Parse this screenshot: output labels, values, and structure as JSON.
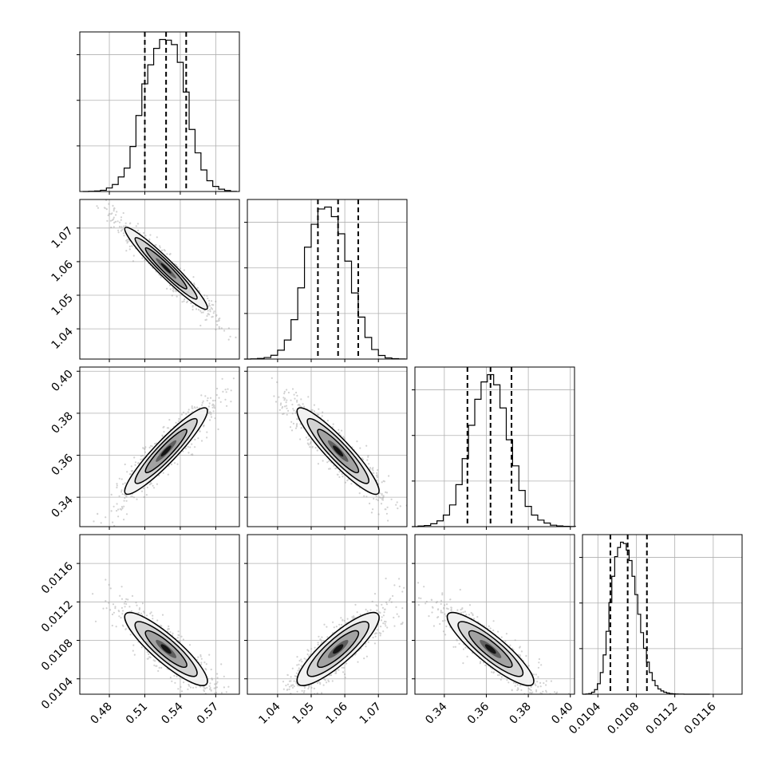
{
  "chart_data": {
    "type": "corner",
    "parameters": [
      {
        "index": 0,
        "range": [
          0.455,
          0.59
        ],
        "ticks": [
          0.48,
          0.51,
          0.54,
          0.57
        ],
        "tick_labels": [
          "0.48",
          "0.51",
          "0.54",
          "0.57"
        ],
        "quantiles": [
          0.51,
          0.528,
          0.545
        ],
        "bins": [
          0.46,
          0.465,
          0.47,
          0.475,
          0.48,
          0.485,
          0.49,
          0.495,
          0.5,
          0.505,
          0.51,
          0.515,
          0.52,
          0.525,
          0.53,
          0.535,
          0.54,
          0.545,
          0.55,
          0.555,
          0.56,
          0.565,
          0.57,
          0.575,
          0.58,
          0.585
        ],
        "counts": [
          0,
          2,
          4,
          10,
          28,
          55,
          115,
          185,
          355,
          600,
          850,
          1000,
          1130,
          1200,
          1195,
          1160,
          1020,
          785,
          490,
          305,
          170,
          85,
          40,
          18,
          8,
          1
        ]
      },
      {
        "index": 1,
        "range": [
          1.031,
          1.0785
        ],
        "ticks": [
          1.04,
          1.05,
          1.06,
          1.07
        ],
        "tick_labels": [
          "1.04",
          "1.05",
          "1.06",
          "1.07"
        ],
        "quantiles": [
          1.052,
          1.058,
          1.064
        ],
        "bins": [
          1.031,
          1.033,
          1.035,
          1.037,
          1.039,
          1.041,
          1.043,
          1.045,
          1.047,
          1.049,
          1.051,
          1.053,
          1.055,
          1.057,
          1.059,
          1.061,
          1.063,
          1.065,
          1.067,
          1.069,
          1.071,
          1.073,
          1.075,
          1.077
        ],
        "counts": [
          0,
          2,
          5,
          12,
          30,
          70,
          150,
          310,
          560,
          880,
          1060,
          1180,
          1195,
          1120,
          985,
          770,
          520,
          330,
          170,
          75,
          28,
          9,
          3,
          1
        ]
      },
      {
        "index": 2,
        "range": [
          0.326,
          0.402
        ],
        "ticks": [
          0.34,
          0.36,
          0.38,
          0.4
        ],
        "tick_labels": [
          "0.34",
          "0.36",
          "0.38",
          "0.40"
        ],
        "quantiles": [
          0.351,
          0.362,
          0.372
        ],
        "bins": [
          0.326,
          0.329,
          0.332,
          0.335,
          0.338,
          0.341,
          0.344,
          0.347,
          0.35,
          0.353,
          0.356,
          0.359,
          0.362,
          0.365,
          0.368,
          0.371,
          0.374,
          0.377,
          0.38,
          0.383,
          0.386,
          0.389,
          0.392,
          0.395,
          0.398,
          0.401
        ],
        "counts": [
          0,
          4,
          8,
          20,
          40,
          80,
          150,
          290,
          470,
          700,
          880,
          1000,
          1050,
          980,
          820,
          600,
          420,
          250,
          140,
          80,
          45,
          25,
          10,
          5,
          2,
          1
        ]
      },
      {
        "index": 3,
        "range": [
          0.01024,
          0.0119
        ],
        "ticks": [
          0.0104,
          0.0108,
          0.0112,
          0.0116
        ],
        "tick_labels": [
          "0.0104",
          "0.0108",
          "0.0112",
          "0.0116"
        ],
        "quantiles": [
          0.01053,
          0.01071,
          0.01091
        ],
        "bins": [
          0.01026,
          0.01029,
          0.01032,
          0.01035,
          0.01038,
          0.01041,
          0.01044,
          0.01047,
          0.0105,
          0.01053,
          0.01056,
          0.01059,
          0.01062,
          0.01065,
          0.01068,
          0.01071,
          0.01074,
          0.01077,
          0.0108,
          0.01083,
          0.01086,
          0.01089,
          0.01092,
          0.01095,
          0.01098,
          0.01101,
          0.01104,
          0.01107,
          0.0111,
          0.01113,
          0.01116,
          0.01119,
          0.01122,
          0.01125,
          0.01128,
          0.01131,
          0.01134,
          0.01137,
          0.0114,
          0.01143,
          0.01146,
          0.01149,
          0.01152,
          0.01155
        ],
        "counts": [
          0,
          2,
          5,
          15,
          35,
          80,
          165,
          300,
          480,
          700,
          900,
          1050,
          1120,
          1160,
          1150,
          1100,
          1020,
          900,
          760,
          610,
          470,
          350,
          245,
          165,
          105,
          65,
          40,
          25,
          15,
          9,
          5,
          3,
          2,
          1,
          1,
          0,
          0,
          0,
          0,
          0,
          0,
          0,
          0,
          0
        ]
      }
    ],
    "hist_y_ticks": [
      0.3,
      0.6,
      0.9
    ],
    "pairs": [
      {
        "row": 1,
        "col": 0,
        "mean": [
          0.528,
          1.058
        ],
        "sd": [
          0.0175,
          0.0061
        ],
        "rho": -0.96
      },
      {
        "row": 2,
        "col": 0,
        "mean": [
          0.528,
          0.362
        ],
        "sd": [
          0.0175,
          0.0103
        ],
        "rho": 0.93
      },
      {
        "row": 2,
        "col": 1,
        "mean": [
          1.058,
          0.362
        ],
        "sd": [
          0.0061,
          0.0103
        ],
        "rho": -0.92
      },
      {
        "row": 3,
        "col": 0,
        "mean": [
          0.528,
          0.01071
        ],
        "sd": [
          0.0175,
          0.00019
        ],
        "rho": -0.88
      },
      {
        "row": 3,
        "col": 1,
        "mean": [
          1.058,
          0.01071
        ],
        "sd": [
          0.0061,
          0.00019
        ],
        "rho": 0.86
      },
      {
        "row": 3,
        "col": 2,
        "mean": [
          0.362,
          0.01071
        ],
        "sd": [
          0.0103,
          0.00019
        ],
        "rho": -0.88
      }
    ],
    "contour_levels_sigma": [
      0.5,
      1.0,
      1.5,
      2.0
    ],
    "scatter_points_per_panel": 700,
    "grid": true,
    "colors": {
      "line": "#000000",
      "scatter": "#9a9a9a",
      "grid": "#b0b0b0",
      "fill_levels": [
        "#f1f1f1",
        "#d2d2d2",
        "#a2a2a2",
        "#5e5e5e",
        "#141414"
      ]
    }
  }
}
